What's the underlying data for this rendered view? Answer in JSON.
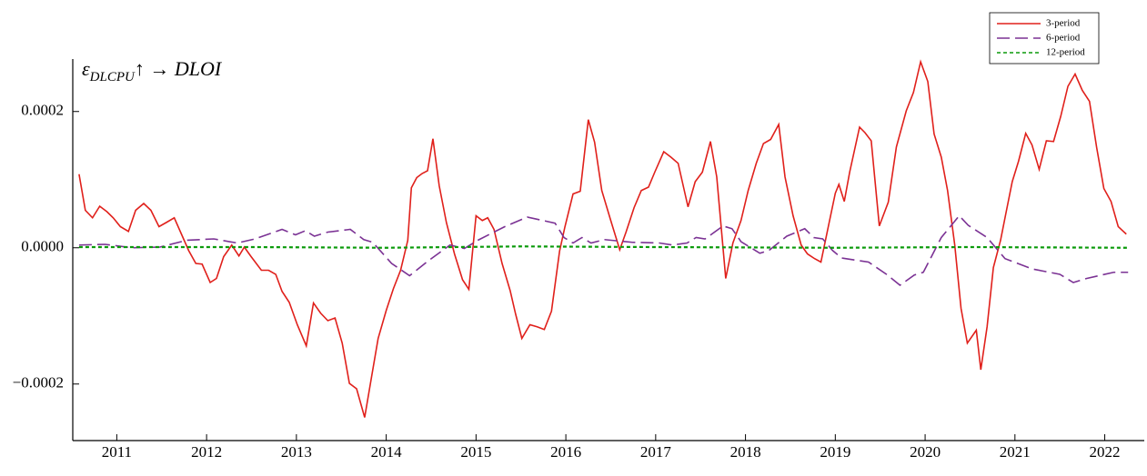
{
  "chart_data": {
    "type": "line",
    "annotation": {
      "symbol": "ε",
      "subscript": "DLCPU",
      "rest": "↑ → DLOI"
    },
    "xlim": [
      2010.51,
      2022.44
    ],
    "xticks": [
      2011,
      2012,
      2013,
      2014,
      2015,
      2016,
      2017,
      2018,
      2019,
      2020,
      2021,
      2022
    ],
    "ylim": [
      -0.000283,
      0.000277
    ],
    "yticks": [
      {
        "value": -0.0002,
        "label": "−0.0002"
      },
      {
        "value": 0,
        "label": "0.0000"
      },
      {
        "value": 0.0002,
        "label": "0.0002"
      }
    ],
    "legend": "upper right",
    "series": [
      {
        "name": "3-period",
        "color": "#e0201b",
        "dash": "solid",
        "x": [
          2010.58,
          2010.65,
          2010.73,
          2010.81,
          2010.89,
          2010.96,
          2011.04,
          2011.13,
          2011.21,
          2011.3,
          2011.38,
          2011.47,
          2011.55,
          2011.64,
          2011.72,
          2011.8,
          2011.88,
          2011.95,
          2012.04,
          2012.11,
          2012.19,
          2012.28,
          2012.36,
          2012.42,
          2012.49,
          2012.61,
          2012.69,
          2012.77,
          2012.84,
          2012.92,
          2013.01,
          2013.11,
          2013.19,
          2013.27,
          2013.35,
          2013.43,
          2013.51,
          2013.59,
          2013.67,
          2013.76,
          2013.84,
          2013.91,
          2014.0,
          2014.08,
          2014.16,
          2014.24,
          2014.28,
          2014.34,
          2014.4,
          2014.46,
          2014.52,
          2014.59,
          2014.67,
          2014.76,
          2014.85,
          2014.92,
          2015.0,
          2015.07,
          2015.13,
          2015.2,
          2015.29,
          2015.38,
          2015.44,
          2015.51,
          2015.6,
          2015.68,
          2015.76,
          2015.84,
          2015.93,
          2015.99,
          2016.08,
          2016.16,
          2016.25,
          2016.32,
          2016.4,
          2016.5,
          2016.6,
          2016.67,
          2016.76,
          2016.84,
          2016.92,
          2016.99,
          2017.09,
          2017.17,
          2017.25,
          2017.36,
          2017.44,
          2017.52,
          2017.61,
          2017.68,
          2017.78,
          2017.86,
          2017.95,
          2018.03,
          2018.12,
          2018.2,
          2018.28,
          2018.37,
          2018.44,
          2018.53,
          2018.62,
          2018.69,
          2018.77,
          2018.84,
          2018.93,
          2019.0,
          2019.04,
          2019.1,
          2019.16,
          2019.27,
          2019.33,
          2019.4,
          2019.49,
          2019.59,
          2019.68,
          2019.79,
          2019.87,
          2019.95,
          2020.03,
          2020.1,
          2020.18,
          2020.25,
          2020.33,
          2020.4,
          2020.47,
          2020.57,
          2020.62,
          2020.69,
          2020.76,
          2020.84,
          2020.9,
          2020.97,
          2021.04,
          2021.12,
          2021.19,
          2021.27,
          2021.35,
          2021.43,
          2021.51,
          2021.59,
          2021.67,
          2021.75,
          2021.83,
          2021.91,
          2021.99,
          2022.07,
          2022.15,
          2022.24
        ],
        "values": [
          0.000108,
          5.5e-05,
          4.4e-05,
          6.1e-05,
          5.3e-05,
          4.4e-05,
          3.1e-05,
          2.4e-05,
          5.5e-05,
          6.5e-05,
          5.5e-05,
          3.1e-05,
          3.7e-05,
          4.4e-05,
          2e-05,
          -4e-06,
          -2.3e-05,
          -2.4e-05,
          -5.1e-05,
          -4.5e-05,
          -1.3e-05,
          4e-06,
          -1.2e-05,
          1e-06,
          -1.2e-05,
          -3.3e-05,
          -3.3e-05,
          -3.9e-05,
          -6.4e-05,
          -8e-05,
          -0.000113,
          -0.000144,
          -8.1e-05,
          -9.6e-05,
          -0.000107,
          -0.000103,
          -0.00014,
          -0.000199,
          -0.000207,
          -0.000249,
          -0.000187,
          -0.000133,
          -9.2e-05,
          -6e-05,
          -3.3e-05,
          1.1e-05,
          8.8e-05,
          0.000103,
          0.000109,
          0.000113,
          0.00016,
          9.1e-05,
          3.7e-05,
          -9e-06,
          -4.7e-05,
          -6.1e-05,
          4.7e-05,
          4e-05,
          4.4e-05,
          2.7e-05,
          -2.3e-05,
          -6.3e-05,
          -9.7e-05,
          -0.000133,
          -0.000113,
          -0.000116,
          -0.00012,
          -9.3e-05,
          -5e-06,
          3.1e-05,
          7.9e-05,
          8.3e-05,
          0.000188,
          0.000155,
          8.4e-05,
          4e-05,
          -3e-06,
          2.3e-05,
          5.9e-05,
          8.4e-05,
          8.9e-05,
          0.000111,
          0.000141,
          0.000133,
          0.000124,
          6e-05,
          9.7e-05,
          0.000111,
          0.000156,
          0.000104,
          -4.5e-05,
          7e-06,
          4e-05,
          8.4e-05,
          0.000124,
          0.000153,
          0.000159,
          0.000181,
          0.000104,
          4.7e-05,
          4e-06,
          -9e-06,
          -1.6e-05,
          -2.1e-05,
          3.6e-05,
          8e-05,
          9.3e-05,
          6.8e-05,
          0.000111,
          0.000177,
          0.000169,
          0.000157,
          3.2e-05,
          6.7e-05,
          0.000148,
          0.000201,
          0.000228,
          0.000273,
          0.000244,
          0.000167,
          0.000133,
          8.4e-05,
          4e-06,
          -8.9e-05,
          -0.00014,
          -0.000121,
          -0.000179,
          -0.000116,
          -2.9e-05,
          1.1e-05,
          5.1e-05,
          9.7e-05,
          0.000127,
          0.000168,
          0.000151,
          0.000115,
          0.000157,
          0.000156,
          0.000193,
          0.000237,
          0.000255,
          0.000231,
          0.000215,
          0.000147,
          8.7e-05,
          6.8e-05,
          3.1e-05,
          2e-05
        ]
      },
      {
        "name": "6-period",
        "color": "#7b3294",
        "dash": "dashed",
        "x": [
          2010.58,
          2010.87,
          2011.17,
          2011.48,
          2011.78,
          2012.08,
          2012.34,
          2012.54,
          2012.84,
          2012.99,
          2013.1,
          2013.2,
          2013.35,
          2013.6,
          2013.75,
          2013.85,
          2014.06,
          2014.26,
          2014.46,
          2014.71,
          2014.87,
          2015.02,
          2015.32,
          2015.57,
          2015.78,
          2015.88,
          2015.98,
          2016.08,
          2016.18,
          2016.28,
          2016.43,
          2016.74,
          2017.04,
          2017.19,
          2017.35,
          2017.45,
          2017.55,
          2017.75,
          2017.85,
          2017.95,
          2018.16,
          2018.26,
          2018.46,
          2018.66,
          2018.76,
          2018.86,
          2018.97,
          2019.07,
          2019.37,
          2019.57,
          2019.72,
          2019.88,
          2019.98,
          2020.18,
          2020.38,
          2020.48,
          2020.69,
          2020.89,
          2021.19,
          2021.5,
          2021.65,
          2021.8,
          2022.1,
          2022.26
        ],
        "values": [
          4e-06,
          5e-06,
          0,
          1e-06,
          1.1e-05,
          1.3e-05,
          7e-06,
          1.3e-05,
          2.7e-05,
          1.9e-05,
          2.5e-05,
          1.7e-05,
          2.3e-05,
          2.7e-05,
          1.2e-05,
          8e-06,
          -2.3e-05,
          -4.1e-05,
          -2e-05,
          4e-06,
          -1e-06,
          1.1e-05,
          3.1e-05,
          4.5e-05,
          3.9e-05,
          3.6e-05,
          1.5e-05,
          7e-06,
          1.5e-05,
          7e-06,
          1.2e-05,
          8e-06,
          7e-06,
          4e-06,
          7e-06,
          1.5e-05,
          1.3e-05,
          3.2e-05,
          2.8e-05,
          9e-06,
          -8e-06,
          -4e-06,
          1.7e-05,
          2.8e-05,
          1.5e-05,
          1.3e-05,
          -4e-06,
          -1.5e-05,
          -2.1e-05,
          -3.9e-05,
          -5.5e-05,
          -4e-05,
          -3.6e-05,
          1.5e-05,
          4.7e-05,
          3.3e-05,
          1.5e-05,
          -1.6e-05,
          -3.1e-05,
          -3.9e-05,
          -5.1e-05,
          -4.5e-05,
          -3.6e-05,
          -3.6e-05
        ]
      },
      {
        "name": "12-period",
        "color": "#0a9a0a",
        "dash": "dotted",
        "x": [
          2010.58,
          2012.5,
          2014,
          2015.5,
          2017,
          2019,
          2020.5,
          2022.26
        ],
        "values": [
          1e-06,
          1e-06,
          0,
          2e-06,
          1e-06,
          0,
          1e-06,
          0
        ]
      }
    ]
  }
}
